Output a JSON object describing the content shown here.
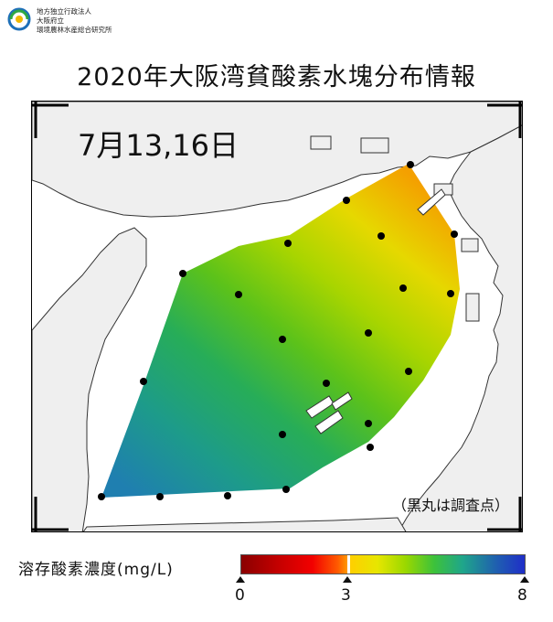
{
  "header": {
    "org_lines": [
      "地方独立行政法人",
      "大阪府立",
      "環境農林水産総合研究所"
    ],
    "title": "2020年大阪湾貧酸素水塊分布情報"
  },
  "map": {
    "date_label": "7月13,16日",
    "note": "（黒丸は調査点）",
    "survey_points_count": 21
  },
  "legend": {
    "label": "溶存酸素濃度(mg/L)",
    "ticks": [
      "0",
      "3",
      "8"
    ],
    "scale_min": 0,
    "scale_max": 8,
    "threshold": 3,
    "colors": {
      "low": "#8a0000",
      "mid": "#ff9a00",
      "high": "#1f2ec8"
    }
  }
}
